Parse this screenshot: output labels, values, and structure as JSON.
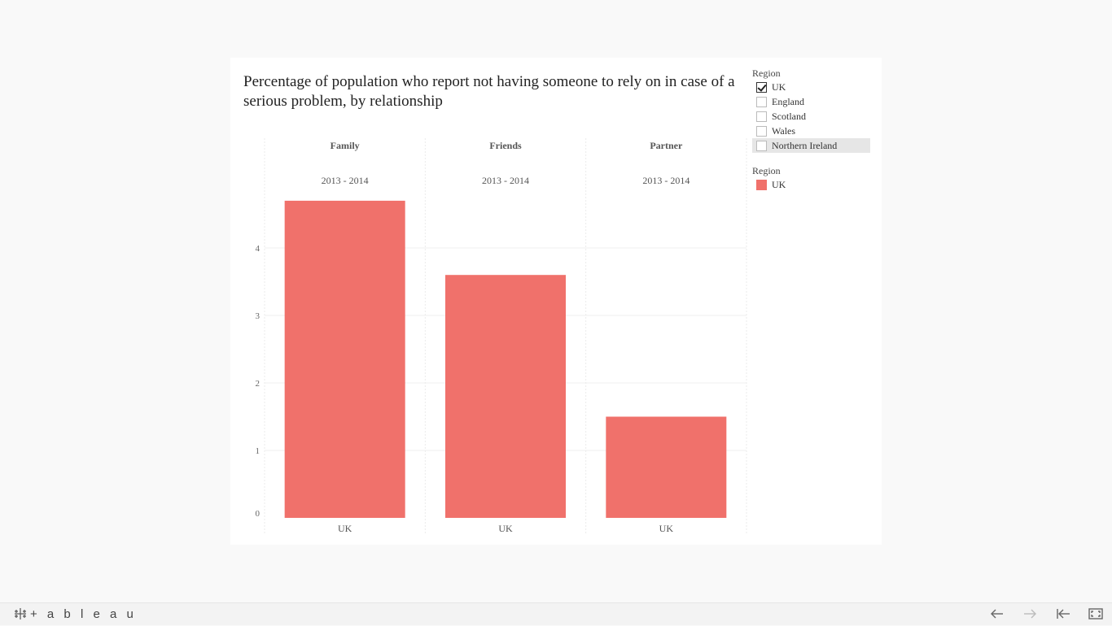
{
  "chart": {
    "title": "Percentage of population who report not having someone to rely on in case of a serious problem, by relationship"
  },
  "chart_data": {
    "type": "bar",
    "panels": [
      "Family",
      "Friends",
      "Partner"
    ],
    "panel_period": "2013 - 2014",
    "categories": [
      "UK",
      "UK",
      "UK"
    ],
    "series": [
      {
        "name": "UK",
        "values": [
          4.7,
          3.6,
          1.5
        ]
      }
    ],
    "yticks": [
      0,
      1,
      2,
      3,
      4
    ],
    "ylim": [
      0,
      5.0
    ],
    "grid": true,
    "bar_color": "#f0716b"
  },
  "filter": {
    "title": "Region",
    "items": [
      {
        "label": "UK",
        "checked": true
      },
      {
        "label": "England",
        "checked": false
      },
      {
        "label": "Scotland",
        "checked": false
      },
      {
        "label": "Wales",
        "checked": false
      },
      {
        "label": "Northern Ireland",
        "checked": false
      }
    ]
  },
  "legend": {
    "title": "Region",
    "items": [
      {
        "label": "UK",
        "color": "#f0716b"
      }
    ]
  },
  "footer": {
    "logo_text": "+ a b l e a u",
    "icons": [
      "undo-icon",
      "redo-icon",
      "revert-icon",
      "fullscreen-icon"
    ]
  }
}
